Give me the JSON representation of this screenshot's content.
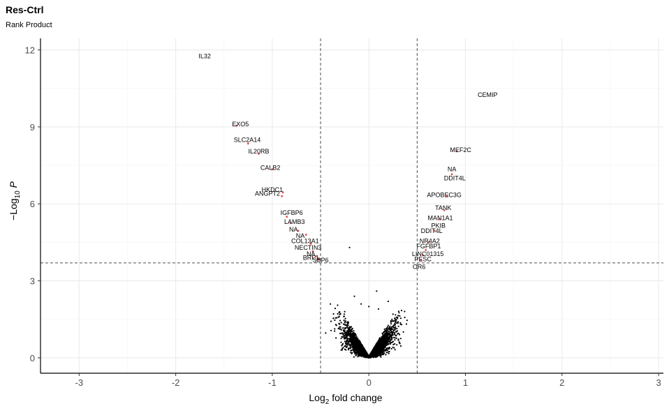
{
  "title": "Res-Ctrl",
  "subtitle": "Rank Product",
  "chart_data": {
    "type": "scatter",
    "title": "Res-Ctrl",
    "subtitle": "Rank Product",
    "xlabel_base": "Log",
    "xlabel_sub": "2",
    "xlabel_rest": " fold change",
    "ylabel_base": "−Log",
    "ylabel_sub": "10",
    "ylabel_rest": " P",
    "xlim": [
      -3.4,
      3.05
    ],
    "ylim": [
      -0.6,
      12.45
    ],
    "x_ticks": [
      -3,
      -2,
      -1,
      0,
      1,
      2,
      3
    ],
    "x_tick_labels": [
      "-3",
      "-2",
      "-1",
      "0",
      "1",
      "2",
      "3"
    ],
    "y_ticks": [
      0,
      3,
      6,
      9,
      12
    ],
    "y_tick_labels": [
      "0",
      "3",
      "6",
      "9",
      "12"
    ],
    "fc_cutoff": [
      -0.5,
      0.5
    ],
    "p_cutoff": 3.7,
    "grid": true,
    "colors": {
      "background": "#ffffff",
      "grid": "#ebebeb",
      "point": "#000000",
      "highlight": "#e8484d",
      "cutoff": "#4d4d4d"
    },
    "labeled_genes": [
      {
        "label": "IL32",
        "x": -1.7,
        "y": 11.75
      },
      {
        "label": "CEMIP",
        "x": 1.23,
        "y": 10.25
      },
      {
        "label": "EXO5",
        "x": -1.33,
        "y": 9.1
      },
      {
        "label": "SLC2A14",
        "x": -1.26,
        "y": 8.5
      },
      {
        "label": "IL20RB",
        "x": -1.14,
        "y": 8.05
      },
      {
        "label": "MEF2C",
        "x": 0.95,
        "y": 8.1
      },
      {
        "label": "CALB2",
        "x": -1.02,
        "y": 7.4
      },
      {
        "label": "NA",
        "x": 0.86,
        "y": 7.35
      },
      {
        "label": "DDIT4L",
        "x": 0.89,
        "y": 7.0
      },
      {
        "label": "HKDC1",
        "x": -1.0,
        "y": 6.55
      },
      {
        "label": "ANGPT2",
        "x": -1.05,
        "y": 6.4
      },
      {
        "label": "APOBEC3G",
        "x": 0.78,
        "y": 6.35
      },
      {
        "label": "TANK",
        "x": 0.77,
        "y": 5.85
      },
      {
        "label": "IGFBP6",
        "x": -0.8,
        "y": 5.65
      },
      {
        "label": "MAN1A1",
        "x": 0.74,
        "y": 5.45
      },
      {
        "label": "LAMB3",
        "x": -0.77,
        "y": 5.3
      },
      {
        "label": "PKIB",
        "x": 0.72,
        "y": 5.15
      },
      {
        "label": "NA",
        "x": -0.78,
        "y": 5.0
      },
      {
        "label": "DDIT4L",
        "x": 0.65,
        "y": 4.95
      },
      {
        "label": "NA",
        "x": -0.71,
        "y": 4.75
      },
      {
        "label": "NR4A2",
        "x": 0.63,
        "y": 4.55
      },
      {
        "label": "COL13A1",
        "x": -0.66,
        "y": 4.55
      },
      {
        "label": "FGFBP1",
        "x": 0.62,
        "y": 4.35
      },
      {
        "label": "NECTIN3",
        "x": -0.63,
        "y": 4.3
      },
      {
        "label": "NA",
        "x": -0.6,
        "y": 4.05
      },
      {
        "label": "LINC01315",
        "x": 0.61,
        "y": 4.05
      },
      {
        "label": "BRF1",
        "x": -0.6,
        "y": 3.9
      },
      {
        "label": "PESC",
        "x": 0.56,
        "y": 3.85
      },
      {
        "label": "SBP6",
        "x": -0.5,
        "y": 3.8
      },
      {
        "label": "OR6",
        "x": 0.52,
        "y": 3.55
      }
    ],
    "highlighted_points": [
      [
        -1.37,
        9.05
      ],
      [
        -1.25,
        8.35
      ],
      [
        -1.14,
        7.95
      ],
      [
        -1.0,
        7.35
      ],
      [
        -0.89,
        6.45
      ],
      [
        -0.9,
        6.3
      ],
      [
        -0.85,
        5.5
      ],
      [
        -0.81,
        5.25
      ],
      [
        -0.73,
        4.95
      ],
      [
        -0.65,
        4.8
      ],
      [
        -0.6,
        4.45
      ],
      [
        -0.58,
        4.15
      ],
      [
        -0.55,
        3.95
      ],
      [
        -0.52,
        3.85
      ],
      [
        0.91,
        8.05
      ],
      [
        0.86,
        7.15
      ],
      [
        0.81,
        6.3
      ],
      [
        0.78,
        5.75
      ],
      [
        0.73,
        5.4
      ],
      [
        0.68,
        4.95
      ],
      [
        0.62,
        4.5
      ],
      [
        0.59,
        4.2
      ],
      [
        0.56,
        4.0
      ],
      [
        0.54,
        3.8
      ]
    ],
    "extra_points": [
      [
        0.0,
        2.0
      ],
      [
        0.2,
        2.2
      ],
      [
        -0.15,
        2.4
      ],
      [
        0.1,
        1.9
      ],
      [
        0.25,
        1.7
      ],
      [
        -0.25,
        1.8
      ],
      [
        -0.2,
        4.3
      ],
      [
        0.08,
        2.6
      ],
      [
        -0.08,
        2.1
      ]
    ],
    "envelope_a": 6.6,
    "n_bulk_points": 7000
  }
}
